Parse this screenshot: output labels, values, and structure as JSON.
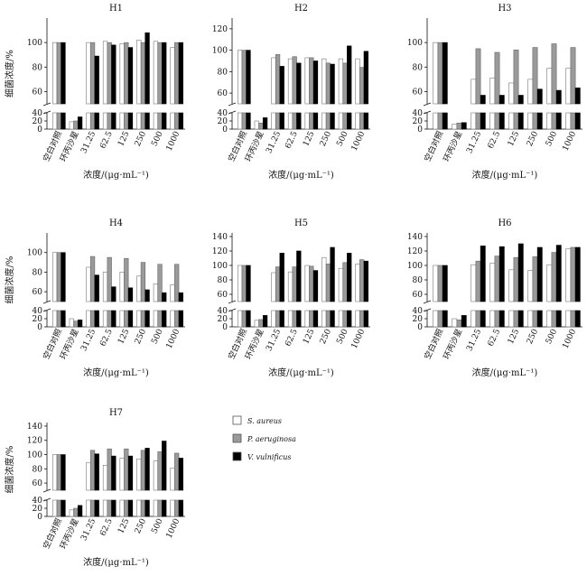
{
  "shared": {
    "categories": [
      "空白对照",
      "环丙沙星",
      "31.25",
      "62.5",
      "125",
      "250",
      "500",
      "1000"
    ],
    "xlabel": "浓度/(μg·mL⁻¹)",
    "ylabel": "细菌浓度/%",
    "legend": [
      {
        "name": "S. aureus",
        "color": "#ffffff"
      },
      {
        "name": "P. aeruginosa",
        "color": "#9a9a9a"
      },
      {
        "name": "V. vulnificus",
        "color": "#000000"
      }
    ]
  },
  "chart_data": [
    {
      "title": "H1",
      "type": "bar",
      "scale": "A",
      "series": [
        {
          "name": "S. aureus",
          "values": [
            100,
            18,
            100,
            101,
            99,
            102,
            101,
            96
          ]
        },
        {
          "name": "P. aeruginosa",
          "values": [
            100,
            20,
            100,
            100,
            100,
            100,
            100,
            100
          ]
        },
        {
          "name": "V. vulnificus",
          "values": [
            100,
            30,
            89,
            98,
            96,
            108,
            100,
            100
          ]
        }
      ]
    },
    {
      "title": "H2",
      "type": "bar",
      "scale": "B",
      "series": [
        {
          "name": "S. aureus",
          "values": [
            100,
            20,
            93,
            92,
            93,
            92,
            92,
            92
          ]
        },
        {
          "name": "P. aeruginosa",
          "values": [
            100,
            15,
            96,
            94,
            93,
            88,
            88,
            84
          ]
        },
        {
          "name": "V. vulnificus",
          "values": [
            100,
            28,
            85,
            88,
            90,
            87,
            104,
            99
          ]
        }
      ]
    },
    {
      "title": "H3",
      "type": "bar",
      "scale": "A",
      "series": [
        {
          "name": "S. aureus",
          "values": [
            100,
            12,
            70,
            71,
            67,
            70,
            79,
            79
          ]
        },
        {
          "name": "P. aeruginosa",
          "values": [
            100,
            15,
            95,
            92,
            94,
            96,
            99,
            96
          ]
        },
        {
          "name": "V. vulnificus",
          "values": [
            100,
            16,
            57,
            57,
            57,
            62,
            61,
            63
          ]
        }
      ]
    },
    {
      "title": "H4",
      "type": "bar",
      "scale": "A",
      "series": [
        {
          "name": "S. aureus",
          "values": [
            100,
            20,
            85,
            80,
            80,
            76,
            68,
            67
          ]
        },
        {
          "name": "P. aeruginosa",
          "values": [
            100,
            14,
            96,
            95,
            94,
            90,
            88,
            88
          ]
        },
        {
          "name": "V. vulnificus",
          "values": [
            100,
            17,
            77,
            65,
            64,
            62,
            59,
            59
          ]
        }
      ]
    },
    {
      "title": "H5",
      "type": "bar",
      "scale": "C",
      "series": [
        {
          "name": "S. aureus",
          "values": [
            100,
            16,
            90,
            91,
            100,
            111,
            96,
            102
          ]
        },
        {
          "name": "P. aeruginosa",
          "values": [
            100,
            18,
            98,
            98,
            99,
            102,
            104,
            108
          ]
        },
        {
          "name": "V. vulnificus",
          "values": [
            100,
            28,
            117,
            120,
            93,
            125,
            117,
            106
          ]
        }
      ]
    },
    {
      "title": "H6",
      "type": "bar",
      "scale": "C",
      "series": [
        {
          "name": "S. aureus",
          "values": [
            100,
            20,
            101,
            103,
            94,
            93,
            101,
            123
          ]
        },
        {
          "name": "P. aeruginosa",
          "values": [
            100,
            17,
            106,
            113,
            111,
            112,
            118,
            125
          ]
        },
        {
          "name": "V. vulnificus",
          "values": [
            100,
            28,
            127,
            126,
            130,
            125,
            128,
            125
          ]
        }
      ]
    },
    {
      "title": "H7",
      "type": "bar",
      "scale": "C",
      "series": [
        {
          "name": "S. aureus",
          "values": [
            100,
            16,
            89,
            85,
            95,
            94,
            91,
            81
          ]
        },
        {
          "name": "P. aeruginosa",
          "values": [
            100,
            20,
            106,
            108,
            108,
            106,
            104,
            102
          ]
        },
        {
          "name": "V. vulnificus",
          "values": [
            100,
            27,
            101,
            98,
            98,
            109,
            119,
            95
          ]
        }
      ]
    }
  ],
  "scales": {
    "A": {
      "upper": [
        50,
        120
      ],
      "upper_ticks": [
        "60",
        "80",
        "100"
      ],
      "lower": [
        0,
        40
      ],
      "lower_ticks": [
        "0",
        "20",
        "40"
      ]
    },
    "B": {
      "upper": [
        50,
        130
      ],
      "upper_ticks": [
        "60",
        "80",
        "100",
        "120"
      ],
      "lower": [
        0,
        40
      ],
      "lower_ticks": [
        "0",
        "20",
        "40"
      ]
    },
    "C": {
      "upper": [
        50,
        145
      ],
      "upper_ticks": [
        "60",
        "80",
        "100",
        "120",
        "140"
      ],
      "lower": [
        0,
        40
      ],
      "lower_ticks": [
        "0",
        "20",
        "40"
      ]
    }
  }
}
